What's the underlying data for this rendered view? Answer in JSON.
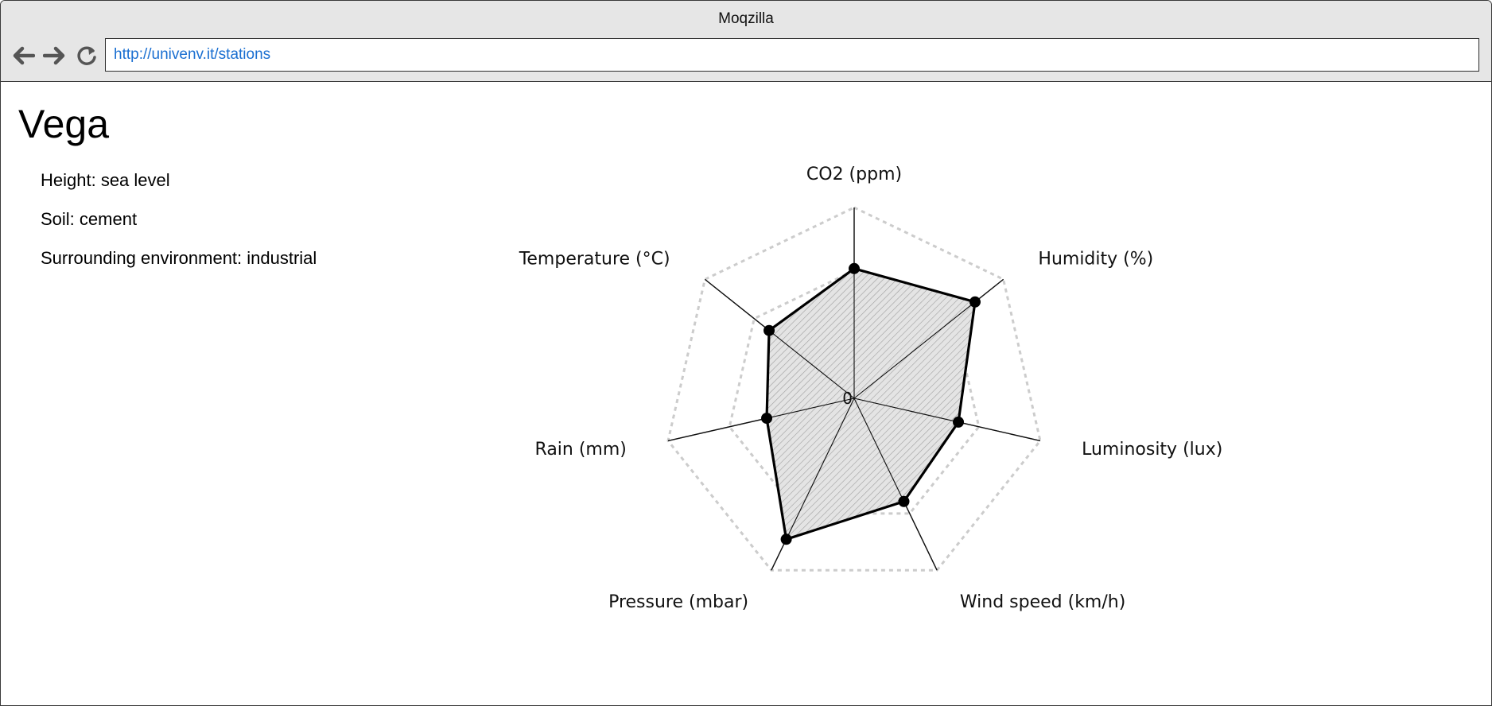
{
  "browser": {
    "app_title": "Moqzilla",
    "url": "http://univenv.it/stations"
  },
  "station": {
    "name": "Vega",
    "height": "Height: sea level",
    "soil": "Soil: cement",
    "environment": "Surrounding environment: industrial"
  },
  "chart_data": {
    "type": "radar",
    "axes": [
      "CO2 (ppm)",
      "Humidity (%)",
      "Luminosity (lux)",
      "Wind speed (km/h)",
      "Pressure (mbar)",
      "Rain (mm)",
      "Temperature (°C)"
    ],
    "values": [
      0.68,
      0.81,
      0.56,
      0.6,
      0.82,
      0.47,
      0.57
    ],
    "rmax": 1,
    "grid_levels": [
      0.33,
      0.67,
      1.0
    ],
    "center_label": "0"
  }
}
